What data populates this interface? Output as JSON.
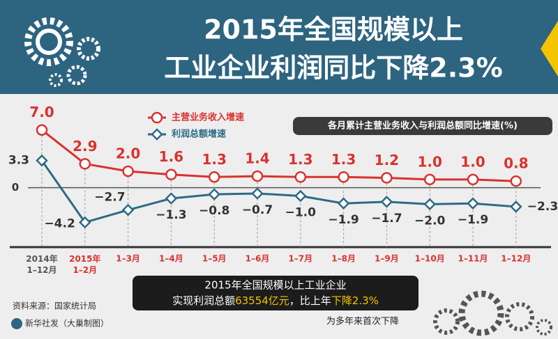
{
  "title_lines": [
    "2015年全国规模以上",
    "工业企业利润同比下降2.3%"
  ],
  "chart_data": {
    "type": "line",
    "subtitle": "各月累计主营业务收入与利润总额同比增速(%)",
    "categories": [
      "2014年 1–12月",
      "2015年 1–2月",
      "1–3月",
      "1–4月",
      "1–5月",
      "1–6月",
      "1–7月",
      "1–8月",
      "1–9月",
      "1–10月",
      "1–11月",
      "1–12月"
    ],
    "series": [
      {
        "name": "主营业务收入增速",
        "color": "#d9322e",
        "marker": "circle",
        "values": [
          7.0,
          2.9,
          2.0,
          1.6,
          1.3,
          1.4,
          1.3,
          1.3,
          1.2,
          1.0,
          1.0,
          0.8
        ],
        "value_labels": [
          "7.0",
          "2.9",
          "2.0",
          "1.6",
          "1.3",
          "1.4",
          "1.3",
          "1.3",
          "1.2",
          "1.0",
          "1.0",
          "0.8"
        ]
      },
      {
        "name": "利润总额增速",
        "color": "#2d6a85",
        "marker": "diamond",
        "values": [
          3.3,
          -4.2,
          -2.7,
          -1.3,
          -0.8,
          -0.7,
          -1.0,
          -1.9,
          -1.7,
          -2.0,
          -1.9,
          -2.3
        ],
        "value_labels": [
          "3.3",
          "−4.2",
          "−2.7",
          "−1.3",
          "−0.8",
          "−0.7",
          "−1.0",
          "−1.9",
          "−1.7",
          "−2.0",
          "−1.9",
          "−2.3"
        ]
      }
    ],
    "ylim": [
      -7.2,
      10.1
    ],
    "yticks": [
      0
    ]
  },
  "callout": {
    "line1": "2015年全国规模以上工业企业",
    "line2": [
      "实现利润总额",
      "63554亿元",
      "，比上年",
      "下降2.3%"
    ],
    "note": "为多年来首次下降"
  },
  "source": "资料来源：国家统计局",
  "credit": "新华社发（大巢制图）"
}
